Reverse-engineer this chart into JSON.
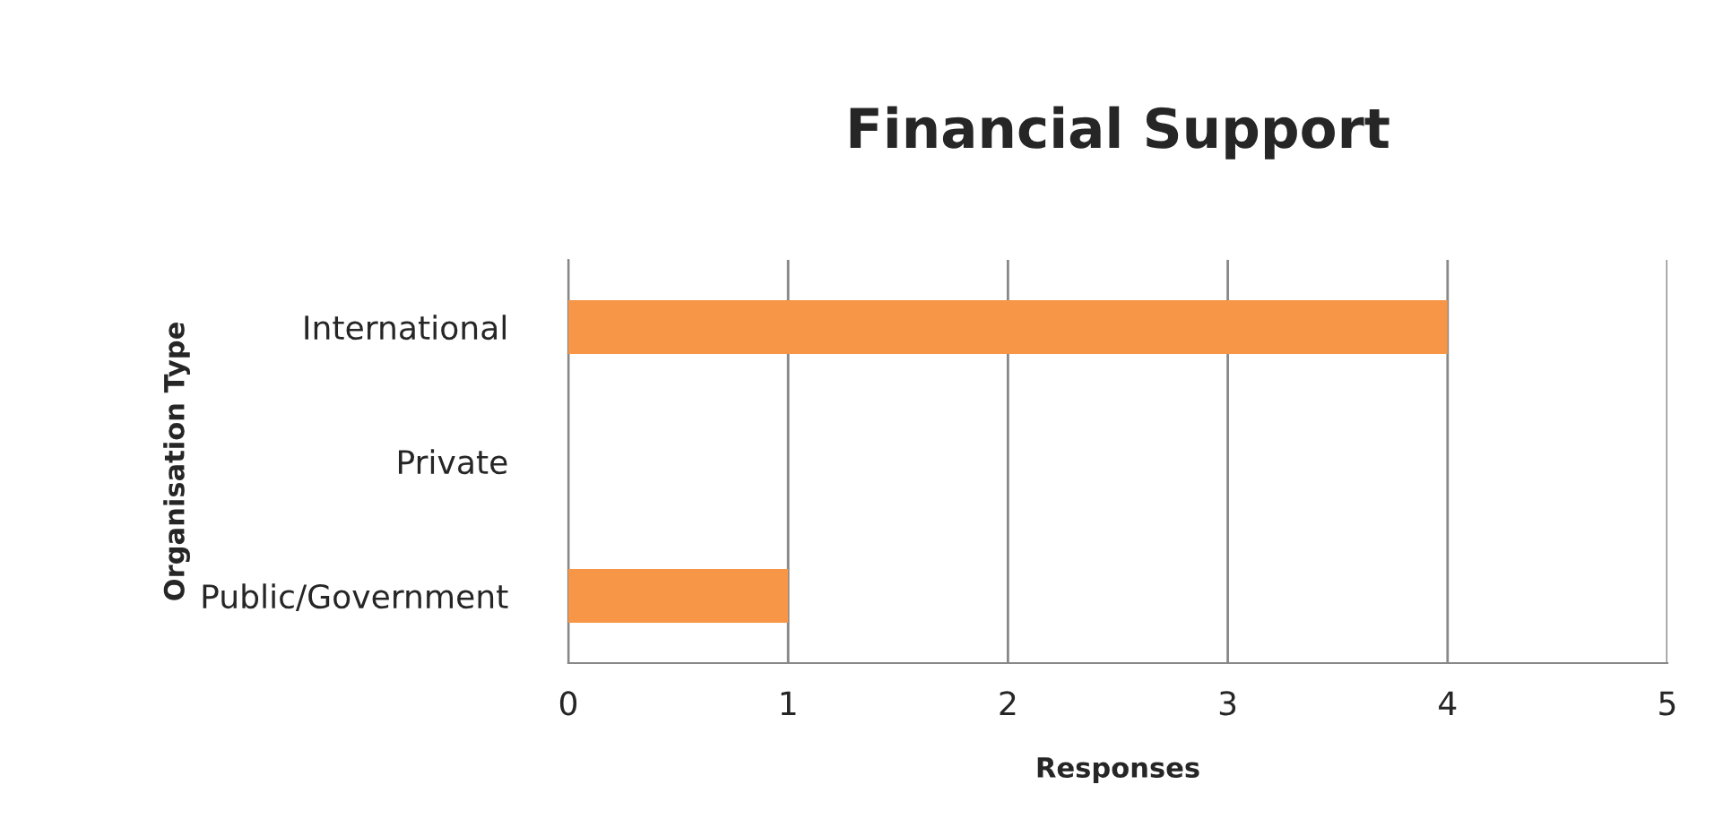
{
  "chart_data": {
    "type": "bar",
    "orientation": "horizontal",
    "title": "Financial Support",
    "xlabel": "Responses",
    "ylabel": "Organisation Type",
    "categories": [
      "International",
      "Private",
      "Public/Government"
    ],
    "values": [
      4,
      0,
      1
    ],
    "color": "#f79646",
    "xlim": [
      0,
      5
    ],
    "xticks": [
      0,
      1,
      2,
      3,
      4,
      5
    ],
    "grid": "x",
    "legend": false
  }
}
